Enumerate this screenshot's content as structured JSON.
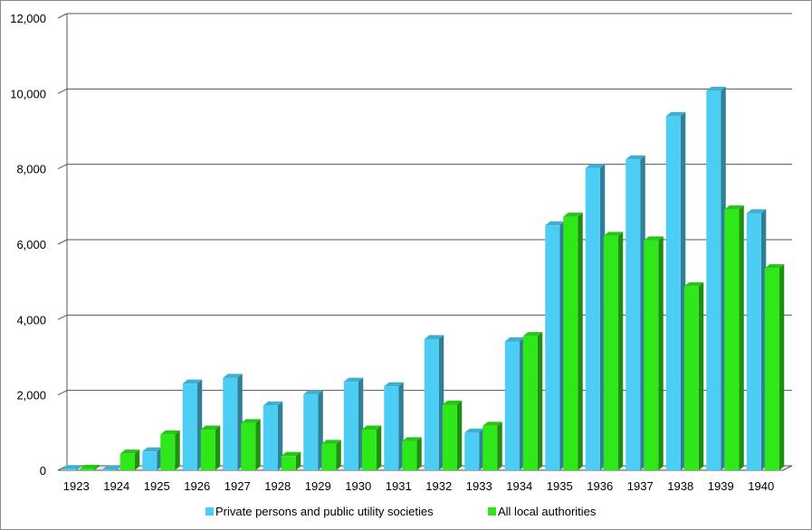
{
  "chart_data": {
    "type": "bar",
    "title": "",
    "xlabel": "",
    "ylabel": "",
    "categories": [
      "1923",
      "1924",
      "1925",
      "1926",
      "1927",
      "1928",
      "1929",
      "1930",
      "1931",
      "1932",
      "1933",
      "1934",
      "1935",
      "1936",
      "1937",
      "1938",
      "1939",
      "1940"
    ],
    "series": [
      {
        "name": "Private persons and public utility societies",
        "color": "#4ccdf4",
        "values": [
          30,
          15,
          500,
          2300,
          2450,
          1720,
          2020,
          2350,
          2230,
          3480,
          1000,
          3420,
          6500,
          8020,
          8250,
          9400,
          10070,
          6820
        ]
      },
      {
        "name": "All local authorities",
        "color": "#2ee81a",
        "values": [
          40,
          440,
          950,
          1080,
          1250,
          380,
          700,
          1080,
          770,
          1740,
          1180,
          3560,
          6730,
          6220,
          6100,
          4880,
          6920,
          5360
        ]
      }
    ],
    "ylim": [
      0,
      12000
    ],
    "yticks": [
      0,
      2000,
      4000,
      6000,
      8000,
      10000,
      12000
    ],
    "ytick_labels": [
      "0",
      "2,000",
      "4,000",
      "6,000",
      "8,000",
      "10,000",
      "12,000"
    ],
    "grid": true,
    "legend_position": "bottom"
  }
}
